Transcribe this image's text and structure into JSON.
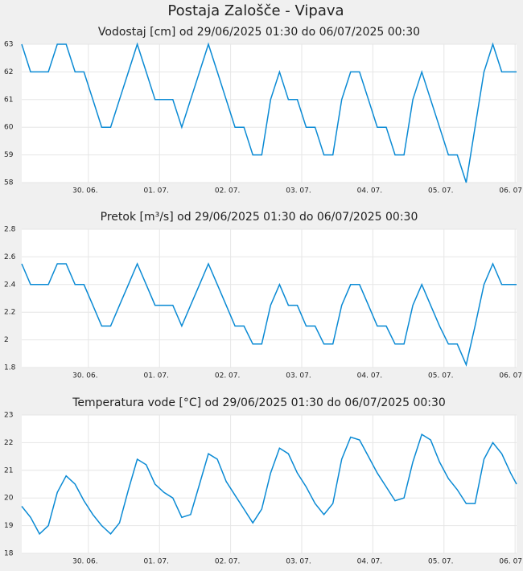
{
  "title": "Postaja Zalošče - Vipava",
  "chart_data": [
    {
      "type": "line",
      "title": "Vodostaj [cm] od 29/06/2025 01:30 do 06/07/2025 00:30",
      "color": "#0a8ad4",
      "grid": true,
      "xlim": [
        "2025-06-29 01:30",
        "2025-07-06 00:30"
      ],
      "xticks": [
        {
          "value": "2025-06-30 00:00",
          "label": "30. 06."
        },
        {
          "value": "2025-07-01 00:00",
          "label": "01. 07."
        },
        {
          "value": "2025-07-02 00:00",
          "label": "02. 07."
        },
        {
          "value": "2025-07-03 00:00",
          "label": "03. 07."
        },
        {
          "value": "2025-07-04 00:00",
          "label": "04. 07."
        },
        {
          "value": "2025-07-05 00:00",
          "label": "05. 07."
        },
        {
          "value": "2025-07-06 00:00",
          "label": "06. 07."
        }
      ],
      "ylim": [
        58,
        63
      ],
      "yticks": [
        58,
        59,
        60,
        61,
        62,
        63
      ],
      "x": [
        "2025-06-29 01:30",
        "2025-06-29 04:30",
        "2025-06-29 07:30",
        "2025-06-29 10:30",
        "2025-06-29 13:30",
        "2025-06-29 16:30",
        "2025-06-29 19:30",
        "2025-06-29 22:30",
        "2025-06-30 01:30",
        "2025-06-30 04:30",
        "2025-06-30 07:30",
        "2025-06-30 10:30",
        "2025-06-30 13:30",
        "2025-06-30 16:30",
        "2025-06-30 19:30",
        "2025-06-30 22:30",
        "2025-07-01 01:30",
        "2025-07-01 04:30",
        "2025-07-01 07:30",
        "2025-07-01 10:30",
        "2025-07-01 13:30",
        "2025-07-01 16:30",
        "2025-07-01 19:30",
        "2025-07-01 22:30",
        "2025-07-02 01:30",
        "2025-07-02 04:30",
        "2025-07-02 07:30",
        "2025-07-02 10:30",
        "2025-07-02 13:30",
        "2025-07-02 16:30",
        "2025-07-02 19:30",
        "2025-07-02 22:30",
        "2025-07-03 01:30",
        "2025-07-03 04:30",
        "2025-07-03 07:30",
        "2025-07-03 10:30",
        "2025-07-03 13:30",
        "2025-07-03 16:30",
        "2025-07-03 19:30",
        "2025-07-03 22:30",
        "2025-07-04 01:30",
        "2025-07-04 04:30",
        "2025-07-04 07:30",
        "2025-07-04 10:30",
        "2025-07-04 13:30",
        "2025-07-04 16:30",
        "2025-07-04 19:30",
        "2025-07-04 22:30",
        "2025-07-05 01:30",
        "2025-07-05 04:30",
        "2025-07-05 07:30",
        "2025-07-05 10:30",
        "2025-07-05 13:30",
        "2025-07-05 16:30",
        "2025-07-05 19:30",
        "2025-07-05 22:30",
        "2025-07-06 00:30"
      ],
      "values": [
        63,
        62,
        62,
        62,
        63,
        63,
        62,
        62,
        61,
        60,
        60,
        61,
        62,
        63,
        62,
        61,
        61,
        61,
        60,
        61,
        62,
        63,
        62,
        61,
        60,
        60,
        59,
        59,
        61,
        62,
        61,
        61,
        60,
        60,
        59,
        59,
        61,
        62,
        62,
        61,
        60,
        60,
        59,
        59,
        61,
        62,
        61,
        60,
        59,
        59,
        58,
        60,
        62,
        63,
        62,
        62,
        62
      ]
    },
    {
      "type": "line",
      "title": "Pretok [m³/s] od 29/06/2025 01:30 do 06/07/2025 00:30",
      "color": "#0a8ad4",
      "grid": true,
      "xlim": [
        "2025-06-29 01:30",
        "2025-07-06 00:30"
      ],
      "xticks": [
        {
          "value": "2025-06-30 00:00",
          "label": "30. 06."
        },
        {
          "value": "2025-07-01 00:00",
          "label": "01. 07."
        },
        {
          "value": "2025-07-02 00:00",
          "label": "02. 07."
        },
        {
          "value": "2025-07-03 00:00",
          "label": "03. 07."
        },
        {
          "value": "2025-07-04 00:00",
          "label": "04. 07."
        },
        {
          "value": "2025-07-05 00:00",
          "label": "05. 07."
        },
        {
          "value": "2025-07-06 00:00",
          "label": "06. 07."
        }
      ],
      "ylim": [
        1.8,
        2.8
      ],
      "yticks": [
        1.8,
        2,
        2.2,
        2.4,
        2.6,
        2.8
      ],
      "x": [
        "2025-06-29 01:30",
        "2025-06-29 04:30",
        "2025-06-29 07:30",
        "2025-06-29 10:30",
        "2025-06-29 13:30",
        "2025-06-29 16:30",
        "2025-06-29 19:30",
        "2025-06-29 22:30",
        "2025-06-30 01:30",
        "2025-06-30 04:30",
        "2025-06-30 07:30",
        "2025-06-30 10:30",
        "2025-06-30 13:30",
        "2025-06-30 16:30",
        "2025-06-30 19:30",
        "2025-06-30 22:30",
        "2025-07-01 01:30",
        "2025-07-01 04:30",
        "2025-07-01 07:30",
        "2025-07-01 10:30",
        "2025-07-01 13:30",
        "2025-07-01 16:30",
        "2025-07-01 19:30",
        "2025-07-01 22:30",
        "2025-07-02 01:30",
        "2025-07-02 04:30",
        "2025-07-02 07:30",
        "2025-07-02 10:30",
        "2025-07-02 13:30",
        "2025-07-02 16:30",
        "2025-07-02 19:30",
        "2025-07-02 22:30",
        "2025-07-03 01:30",
        "2025-07-03 04:30",
        "2025-07-03 07:30",
        "2025-07-03 10:30",
        "2025-07-03 13:30",
        "2025-07-03 16:30",
        "2025-07-03 19:30",
        "2025-07-03 22:30",
        "2025-07-04 01:30",
        "2025-07-04 04:30",
        "2025-07-04 07:30",
        "2025-07-04 10:30",
        "2025-07-04 13:30",
        "2025-07-04 16:30",
        "2025-07-04 19:30",
        "2025-07-04 22:30",
        "2025-07-05 01:30",
        "2025-07-05 04:30",
        "2025-07-05 07:30",
        "2025-07-05 10:30",
        "2025-07-05 13:30",
        "2025-07-05 16:30",
        "2025-07-05 19:30",
        "2025-07-05 22:30",
        "2025-07-06 00:30"
      ],
      "values": [
        2.55,
        2.4,
        2.4,
        2.4,
        2.55,
        2.55,
        2.4,
        2.4,
        2.25,
        2.1,
        2.1,
        2.25,
        2.4,
        2.55,
        2.4,
        2.25,
        2.25,
        2.25,
        2.1,
        2.25,
        2.4,
        2.55,
        2.4,
        2.25,
        2.1,
        2.1,
        1.97,
        1.97,
        2.25,
        2.4,
        2.25,
        2.25,
        2.1,
        2.1,
        1.97,
        1.97,
        2.25,
        2.4,
        2.4,
        2.25,
        2.1,
        2.1,
        1.97,
        1.97,
        2.25,
        2.4,
        2.25,
        2.1,
        1.97,
        1.97,
        1.82,
        2.1,
        2.4,
        2.55,
        2.4,
        2.4,
        2.4
      ]
    },
    {
      "type": "line",
      "title": "Temperatura vode [°C] od 29/06/2025 01:30 do 06/07/2025 00:30",
      "color": "#0a8ad4",
      "grid": true,
      "xlim": [
        "2025-06-29 01:30",
        "2025-07-06 00:30"
      ],
      "xticks": [
        {
          "value": "2025-06-30 00:00",
          "label": "30. 06."
        },
        {
          "value": "2025-07-01 00:00",
          "label": "01. 07."
        },
        {
          "value": "2025-07-02 00:00",
          "label": "02. 07."
        },
        {
          "value": "2025-07-03 00:00",
          "label": "03. 07."
        },
        {
          "value": "2025-07-04 00:00",
          "label": "04. 07."
        },
        {
          "value": "2025-07-05 00:00",
          "label": "05. 07."
        },
        {
          "value": "2025-07-06 00:00",
          "label": "06. 07."
        }
      ],
      "ylim": [
        18,
        23
      ],
      "yticks": [
        18,
        19,
        20,
        21,
        22,
        23
      ],
      "x": [
        "2025-06-29 01:30",
        "2025-06-29 04:30",
        "2025-06-29 07:30",
        "2025-06-29 10:30",
        "2025-06-29 13:30",
        "2025-06-29 16:30",
        "2025-06-29 19:30",
        "2025-06-29 22:30",
        "2025-06-30 01:30",
        "2025-06-30 04:30",
        "2025-06-30 07:30",
        "2025-06-30 10:30",
        "2025-06-30 13:30",
        "2025-06-30 16:30",
        "2025-06-30 19:30",
        "2025-06-30 22:30",
        "2025-07-01 01:30",
        "2025-07-01 04:30",
        "2025-07-01 07:30",
        "2025-07-01 10:30",
        "2025-07-01 13:30",
        "2025-07-01 16:30",
        "2025-07-01 19:30",
        "2025-07-01 22:30",
        "2025-07-02 01:30",
        "2025-07-02 04:30",
        "2025-07-02 07:30",
        "2025-07-02 10:30",
        "2025-07-02 13:30",
        "2025-07-02 16:30",
        "2025-07-02 19:30",
        "2025-07-02 22:30",
        "2025-07-03 01:30",
        "2025-07-03 04:30",
        "2025-07-03 07:30",
        "2025-07-03 10:30",
        "2025-07-03 13:30",
        "2025-07-03 16:30",
        "2025-07-03 19:30",
        "2025-07-03 22:30",
        "2025-07-04 01:30",
        "2025-07-04 04:30",
        "2025-07-04 07:30",
        "2025-07-04 10:30",
        "2025-07-04 13:30",
        "2025-07-04 16:30",
        "2025-07-04 19:30",
        "2025-07-04 22:30",
        "2025-07-05 01:30",
        "2025-07-05 04:30",
        "2025-07-05 07:30",
        "2025-07-05 10:30",
        "2025-07-05 13:30",
        "2025-07-05 16:30",
        "2025-07-05 19:30",
        "2025-07-05 22:30",
        "2025-07-06 00:30"
      ],
      "values": [
        19.7,
        19.3,
        18.7,
        19.0,
        20.2,
        20.8,
        20.5,
        19.9,
        19.4,
        19.0,
        18.7,
        19.1,
        20.3,
        21.4,
        21.2,
        20.5,
        20.2,
        20.0,
        19.3,
        19.4,
        20.5,
        21.6,
        21.4,
        20.6,
        20.1,
        19.6,
        19.1,
        19.6,
        20.9,
        21.8,
        21.6,
        20.9,
        20.4,
        19.8,
        19.4,
        19.8,
        21.4,
        22.2,
        22.1,
        21.5,
        20.9,
        20.4,
        19.9,
        20.0,
        21.3,
        22.3,
        22.1,
        21.3,
        20.7,
        20.3,
        19.8,
        19.8,
        21.4,
        22.0,
        21.6,
        20.9,
        20.5
      ]
    }
  ]
}
